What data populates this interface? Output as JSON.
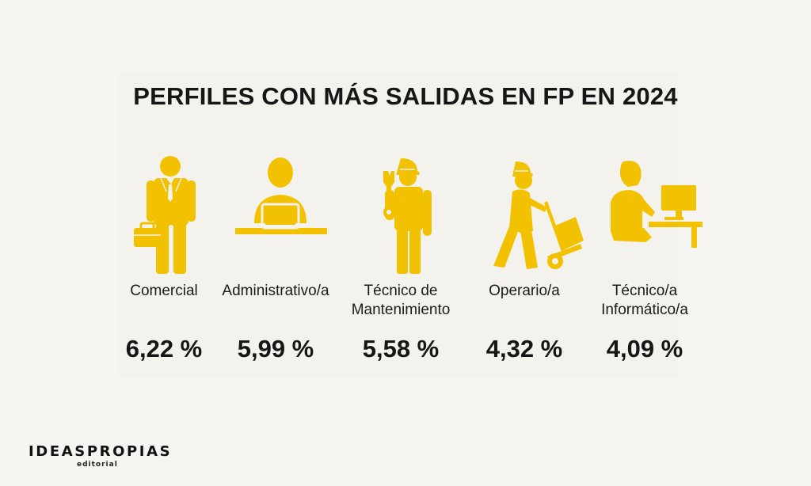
{
  "title": "PERFILES CON MÁS SALIDAS EN FP EN 2024",
  "colors": {
    "icon": "#f2c200",
    "text": "#161616",
    "background": "#f6f5f1"
  },
  "profiles": [
    {
      "label": "Comercial",
      "value": "6,22 %",
      "icon": "businessman-briefcase-icon"
    },
    {
      "label": "Administrativo/a",
      "value": "5,99 %",
      "icon": "office-worker-laptop-icon"
    },
    {
      "label": "Técnico de Mantenimiento",
      "value": "5,58 %",
      "icon": "maintenance-worker-wrench-icon"
    },
    {
      "label": "Operario/a",
      "value": "4,32 %",
      "icon": "operator-hand-truck-icon"
    },
    {
      "label": "Técnico/a Informático/a",
      "value": "4,09 %",
      "icon": "it-technician-computer-icon"
    }
  ],
  "logo": {
    "name": "IDEASPROPIAS",
    "subtitle": "editorial"
  }
}
